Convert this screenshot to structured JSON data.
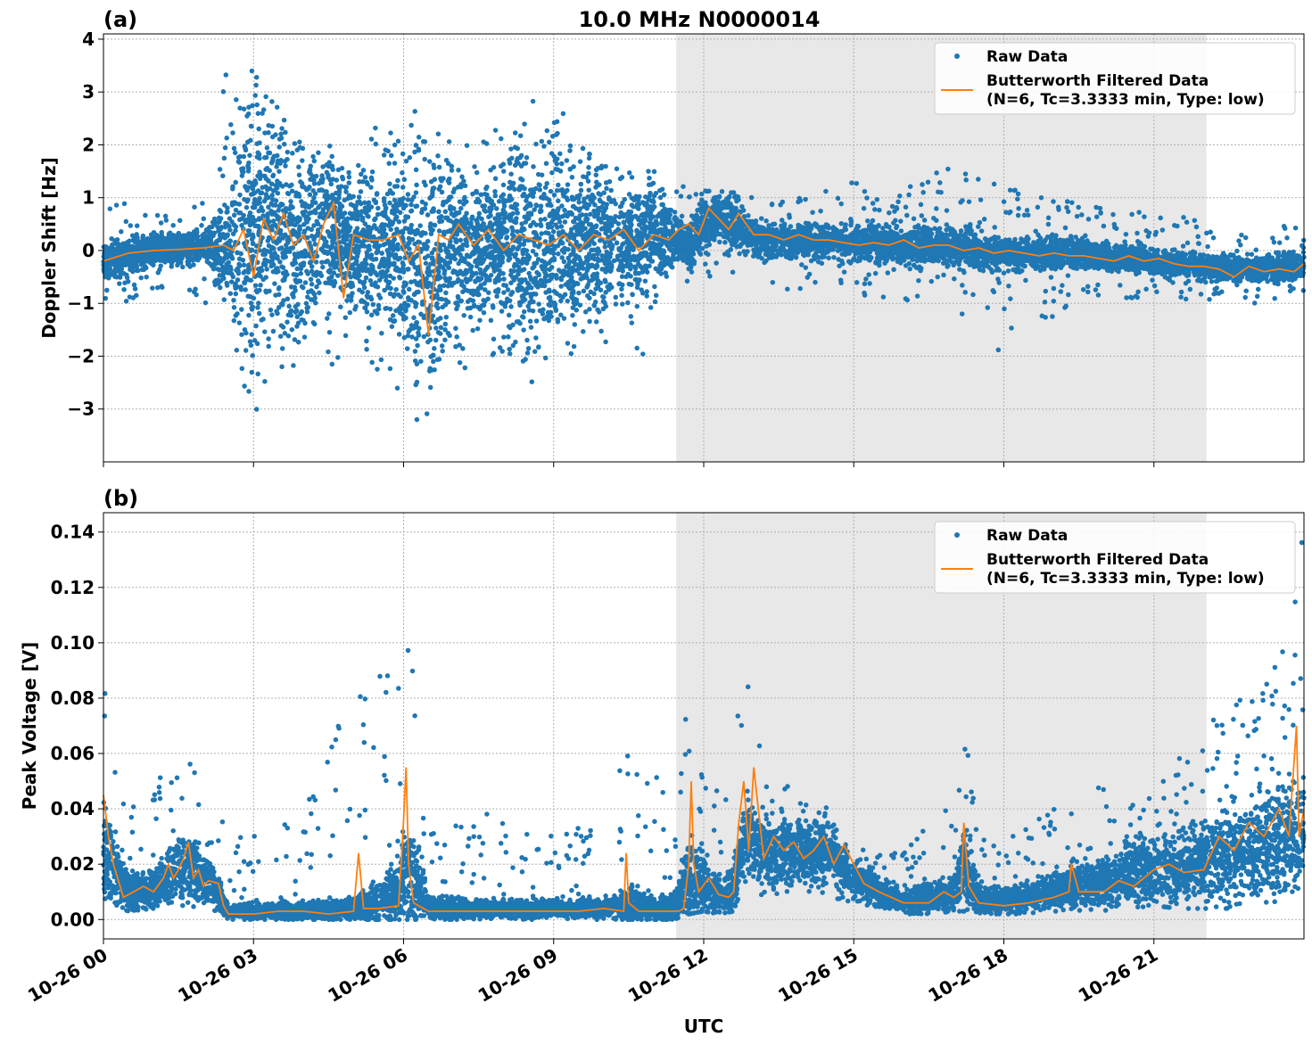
{
  "figure": {
    "title": "10.0 MHz N0000014",
    "xlabel": "UTC",
    "colors": {
      "raw": "#1f77b4",
      "filtered": "#ff7f0e",
      "shade": "#e8e8e8",
      "grid": "#b0b0b0"
    }
  },
  "legend": {
    "raw_label": "Raw Data",
    "filt_label_1": "Butterworth Filtered Data",
    "filt_label_2": "(N=6, Tc=3.3333 min, Type: low)"
  },
  "chart_data": [
    {
      "type": "scatter",
      "panel_label": "(a)",
      "title": "10.0 MHz N0000014",
      "xlabel": "",
      "ylabel": "Doppler Shift [Hz]",
      "x_unit": "hours UTC on 10-26",
      "xlim": [
        0,
        24
      ],
      "ylim": [
        -4.0,
        4.1
      ],
      "xticks": [
        0,
        3,
        6,
        9,
        12,
        15,
        18,
        21
      ],
      "yticks": [
        -3,
        -2,
        -1,
        0,
        1,
        2,
        3,
        4
      ],
      "ytick_labels": [
        "−3",
        "−2",
        "−1",
        "0",
        "1",
        "2",
        "3",
        "4"
      ],
      "shaded_region": [
        11.45,
        22.05
      ],
      "grid": true,
      "legend_position": "upper right",
      "series": [
        {
          "name": "Raw Data",
          "style": "markers",
          "x": [
            0,
            1,
            2,
            2.5,
            2.7,
            3,
            3.3,
            3.6,
            4,
            4.5,
            5,
            5.5,
            6,
            6.5,
            6.7,
            7,
            7.5,
            8,
            8.5,
            9,
            9.5,
            10,
            10.5,
            11,
            11.4,
            11.7,
            12,
            12.5,
            13,
            14,
            15,
            16,
            17,
            18,
            19,
            20,
            21,
            22,
            23,
            24
          ],
          "center": [
            -0.2,
            0.0,
            0.1,
            0.0,
            0.3,
            0.2,
            0.5,
            0.2,
            0.0,
            0.5,
            0.0,
            0.2,
            0.0,
            -0.5,
            -0.2,
            0.1,
            0.0,
            0.2,
            0.1,
            0.2,
            0.3,
            0.2,
            0.2,
            0.3,
            0.2,
            0.1,
            0.5,
            0.6,
            0.2,
            0.2,
            0.15,
            0.1,
            0.05,
            -0.05,
            -0.05,
            -0.1,
            -0.2,
            -0.3,
            -0.35,
            -0.3
          ],
          "spread": [
            0.3,
            0.3,
            0.3,
            0.9,
            2.5,
            2.3,
            2.2,
            1.8,
            1.5,
            1.3,
            1.2,
            1.3,
            1.5,
            2.3,
            1.8,
            1.4,
            1.2,
            1.3,
            1.8,
            1.9,
            1.4,
            1.2,
            1.0,
            0.9,
            0.5,
            0.4,
            0.45,
            0.45,
            0.35,
            0.3,
            0.3,
            0.35,
            0.35,
            0.3,
            0.3,
            0.25,
            0.25,
            0.25,
            0.25,
            0.25
          ],
          "outlier_max": [
            0.9,
            0.9,
            0.9,
            3.7,
            3.6,
            3.7,
            3.0,
            2.5,
            2.0,
            2.0,
            1.5,
            2.5,
            2.8,
            2.9,
            2.2,
            2.0,
            2.0,
            2.5,
            3.0,
            3.3,
            2.0,
            1.6,
            1.5,
            1.5,
            1.3,
            1.2,
            1.3,
            1.2,
            1.0,
            1.0,
            1.3,
            1.3,
            1.6,
            1.2,
            1.0,
            0.8,
            0.7,
            0.6,
            0.5,
            0.5
          ],
          "outlier_min": [
            -1.1,
            -0.8,
            -0.9,
            -2.5,
            -2.9,
            -3.2,
            -2.5,
            -2.5,
            -2.0,
            -2.5,
            -2.0,
            -2.3,
            -3.0,
            -3.5,
            -2.9,
            -2.5,
            -2.0,
            -2.0,
            -2.5,
            -2.5,
            -2.0,
            -1.7,
            -2.1,
            -2.1,
            -0.8,
            -0.6,
            -0.5,
            -0.5,
            -0.7,
            -0.8,
            -0.9,
            -1.0,
            -1.1,
            -2.0,
            -1.3,
            -0.9,
            -0.9,
            -1.0,
            -1.0,
            -0.8
          ]
        },
        {
          "name": "Butterworth Filtered Data\n(N=6, Tc=3.3333 min, Type: low)",
          "style": "line",
          "x": [
            0,
            0.5,
            1,
            1.5,
            2,
            2.4,
            2.6,
            2.8,
            3,
            3.2,
            3.4,
            3.6,
            3.8,
            4,
            4.2,
            4.4,
            4.6,
            4.8,
            5,
            5.3,
            5.6,
            5.9,
            6.1,
            6.3,
            6.5,
            6.7,
            6.9,
            7.1,
            7.4,
            7.7,
            8,
            8.3,
            8.6,
            8.9,
            9.2,
            9.5,
            9.8,
            10.1,
            10.4,
            10.7,
            11,
            11.3,
            11.5,
            11.7,
            11.9,
            12.1,
            12.3,
            12.5,
            12.7,
            13,
            13.3,
            13.6,
            13.9,
            14.2,
            14.5,
            14.8,
            15.1,
            15.4,
            15.7,
            16,
            16.3,
            16.6,
            16.9,
            17.2,
            17.5,
            17.8,
            18.1,
            18.4,
            18.7,
            19,
            19.3,
            19.6,
            19.9,
            20.2,
            20.5,
            20.8,
            21.1,
            21.4,
            21.7,
            22,
            22.3,
            22.6,
            22.9,
            23.2,
            23.5,
            23.8,
            24
          ],
          "y": [
            -0.2,
            -0.05,
            0.0,
            0.02,
            0.05,
            0.1,
            0.0,
            0.4,
            -0.5,
            0.6,
            0.2,
            0.7,
            0.1,
            0.3,
            -0.2,
            0.5,
            0.9,
            -0.9,
            0.3,
            0.2,
            0.2,
            0.3,
            -0.2,
            0.1,
            -1.6,
            0.3,
            0.2,
            0.5,
            0.1,
            0.4,
            0.0,
            0.3,
            0.2,
            0.1,
            0.3,
            0.0,
            0.3,
            0.2,
            0.4,
            0.0,
            0.3,
            0.2,
            0.4,
            0.5,
            0.3,
            0.8,
            0.6,
            0.4,
            0.7,
            0.3,
            0.3,
            0.2,
            0.3,
            0.2,
            0.2,
            0.15,
            0.1,
            0.15,
            0.1,
            0.2,
            0.05,
            0.1,
            0.1,
            0.0,
            0.05,
            -0.05,
            0.0,
            -0.05,
            -0.1,
            -0.05,
            -0.1,
            -0.1,
            -0.15,
            -0.2,
            -0.1,
            -0.2,
            -0.15,
            -0.25,
            -0.3,
            -0.3,
            -0.35,
            -0.5,
            -0.3,
            -0.4,
            -0.35,
            -0.4,
            -0.25
          ]
        }
      ]
    },
    {
      "type": "scatter",
      "panel_label": "(b)",
      "title": "",
      "xlabel": "UTC",
      "ylabel": "Peak Voltage [V]",
      "x_unit": "hours UTC on 10-26",
      "xlim": [
        0,
        24
      ],
      "ylim": [
        -0.007,
        0.147
      ],
      "xticks": [
        0,
        3,
        6,
        9,
        12,
        15,
        18,
        21
      ],
      "xtick_labels": [
        "10-26 00",
        "10-26 03",
        "10-26 06",
        "10-26 09",
        "10-26 12",
        "10-26 15",
        "10-26 18",
        "10-26 21"
      ],
      "yticks": [
        0.0,
        0.02,
        0.04,
        0.06,
        0.08,
        0.1,
        0.12,
        0.14
      ],
      "ytick_labels": [
        "0.00",
        "0.02",
        "0.04",
        "0.06",
        "0.08",
        "0.10",
        "0.12",
        "0.14"
      ],
      "shaded_region": [
        11.45,
        22.05
      ],
      "grid": true,
      "legend_position": "upper right",
      "series": [
        {
          "name": "Raw Data",
          "style": "markers",
          "x": [
            0,
            0.2,
            0.5,
            1,
            1.3,
            1.6,
            2,
            2.3,
            2.5,
            3,
            4,
            5,
            5.9,
            6.1,
            6.5,
            7,
            8,
            9,
            10,
            10.5,
            11,
            11.4,
            11.7,
            12,
            12.3,
            12.6,
            12.8,
            13.2,
            13.6,
            14,
            14.5,
            15,
            15.5,
            16,
            16.5,
            17,
            17.2,
            17.5,
            18,
            18.5,
            19,
            19.5,
            20,
            20.5,
            21,
            21.5,
            22,
            22.5,
            23,
            23.5,
            24
          ],
          "center": [
            0.025,
            0.02,
            0.01,
            0.01,
            0.015,
            0.02,
            0.015,
            0.01,
            0.003,
            0.003,
            0.003,
            0.004,
            0.01,
            0.02,
            0.004,
            0.004,
            0.004,
            0.004,
            0.004,
            0.006,
            0.004,
            0.004,
            0.015,
            0.012,
            0.008,
            0.012,
            0.03,
            0.025,
            0.025,
            0.025,
            0.025,
            0.015,
            0.01,
            0.007,
            0.008,
            0.009,
            0.02,
            0.008,
            0.007,
            0.009,
            0.01,
            0.012,
            0.013,
            0.017,
            0.018,
            0.02,
            0.02,
            0.025,
            0.025,
            0.03,
            0.03
          ],
          "spread": [
            0.02,
            0.012,
            0.006,
            0.007,
            0.01,
            0.012,
            0.01,
            0.006,
            0.002,
            0.003,
            0.003,
            0.004,
            0.01,
            0.02,
            0.004,
            0.004,
            0.003,
            0.003,
            0.003,
            0.006,
            0.004,
            0.004,
            0.015,
            0.01,
            0.006,
            0.01,
            0.015,
            0.012,
            0.012,
            0.01,
            0.01,
            0.007,
            0.005,
            0.004,
            0.005,
            0.006,
            0.015,
            0.005,
            0.005,
            0.005,
            0.006,
            0.007,
            0.008,
            0.01,
            0.012,
            0.015,
            0.015,
            0.018,
            0.018,
            0.02,
            0.02
          ],
          "outlier_max": [
            0.097,
            0.075,
            0.04,
            0.045,
            0.06,
            0.062,
            0.058,
            0.04,
            0.03,
            0.03,
            0.04,
            0.085,
            0.097,
            0.105,
            0.03,
            0.038,
            0.041,
            0.032,
            0.035,
            0.073,
            0.06,
            0.03,
            0.084,
            0.06,
            0.05,
            0.095,
            0.092,
            0.06,
            0.05,
            0.045,
            0.04,
            0.03,
            0.025,
            0.025,
            0.035,
            0.045,
            0.084,
            0.035,
            0.03,
            0.035,
            0.04,
            0.04,
            0.05,
            0.045,
            0.045,
            0.06,
            0.07,
            0.08,
            0.08,
            0.1,
            0.14
          ],
          "outlier_min": [
            0.008,
            0.005,
            0.003,
            0.004,
            0.004,
            0.005,
            0.004,
            0.003,
            0.0,
            0.0,
            0.0,
            0.0,
            0.0,
            0.0,
            0.0,
            0.0,
            0.0,
            0.0,
            0.0,
            0.0,
            0.0,
            0.0,
            0.002,
            0.003,
            0.002,
            0.003,
            0.01,
            0.008,
            0.008,
            0.008,
            0.008,
            0.005,
            0.003,
            0.002,
            0.002,
            0.003,
            0.003,
            0.002,
            0.002,
            0.002,
            0.003,
            0.003,
            0.003,
            0.004,
            0.005,
            0.004,
            0.004,
            0.004,
            0.005,
            0.006,
            0.006
          ]
        },
        {
          "name": "Butterworth Filtered Data\n(N=6, Tc=3.3333 min, Type: low)",
          "style": "line",
          "x": [
            0,
            0.1,
            0.2,
            0.4,
            0.6,
            0.8,
            1,
            1.2,
            1.3,
            1.4,
            1.5,
            1.6,
            1.7,
            1.8,
            1.9,
            2,
            2.1,
            2.3,
            2.4,
            2.5,
            2.7,
            3,
            3.5,
            4,
            4.5,
            5,
            5.1,
            5.2,
            5.5,
            5.9,
            6,
            6.05,
            6.1,
            6.2,
            6.5,
            7,
            7.5,
            8,
            8.5,
            9,
            9.5,
            10,
            10.4,
            10.45,
            10.5,
            10.7,
            11,
            11.3,
            11.5,
            11.6,
            11.7,
            11.75,
            11.8,
            11.9,
            12.1,
            12.3,
            12.5,
            12.6,
            12.7,
            12.8,
            12.9,
            13,
            13.2,
            13.4,
            13.6,
            13.8,
            14,
            14.2,
            14.4,
            14.6,
            14.8,
            15,
            15.2,
            15.5,
            16,
            16.5,
            16.8,
            17,
            17.15,
            17.2,
            17.3,
            17.5,
            18,
            18.5,
            19,
            19.3,
            19.35,
            19.5,
            20,
            20.3,
            20.6,
            21,
            21.3,
            21.6,
            22,
            22.3,
            22.6,
            22.9,
            23.2,
            23.5,
            23.7,
            23.85,
            23.9,
            24
          ],
          "y": [
            0.045,
            0.03,
            0.02,
            0.008,
            0.01,
            0.012,
            0.01,
            0.015,
            0.02,
            0.015,
            0.018,
            0.022,
            0.028,
            0.015,
            0.018,
            0.012,
            0.014,
            0.013,
            0.005,
            0.002,
            0.002,
            0.002,
            0.003,
            0.003,
            0.002,
            0.003,
            0.024,
            0.004,
            0.004,
            0.005,
            0.036,
            0.055,
            0.02,
            0.006,
            0.003,
            0.003,
            0.003,
            0.003,
            0.003,
            0.003,
            0.003,
            0.004,
            0.003,
            0.024,
            0.006,
            0.003,
            0.003,
            0.003,
            0.003,
            0.004,
            0.02,
            0.05,
            0.02,
            0.01,
            0.015,
            0.009,
            0.008,
            0.01,
            0.035,
            0.05,
            0.025,
            0.055,
            0.022,
            0.03,
            0.025,
            0.028,
            0.022,
            0.025,
            0.03,
            0.02,
            0.027,
            0.02,
            0.013,
            0.01,
            0.006,
            0.006,
            0.01,
            0.008,
            0.01,
            0.035,
            0.012,
            0.006,
            0.005,
            0.006,
            0.008,
            0.01,
            0.02,
            0.01,
            0.01,
            0.014,
            0.012,
            0.018,
            0.02,
            0.017,
            0.018,
            0.03,
            0.025,
            0.035,
            0.03,
            0.04,
            0.03,
            0.07,
            0.03,
            0.04
          ]
        }
      ]
    }
  ]
}
